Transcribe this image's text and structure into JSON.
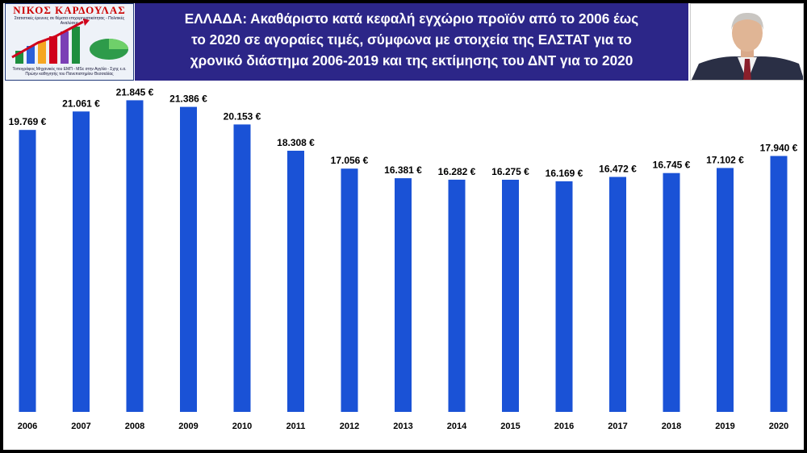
{
  "logo": {
    "name": "ΝΙΚΟΣ ΚΑΡΔΟΥΛΑΣ",
    "subtitle": "Στατιστικές έρευνες σε θέματα επιχειρηματικότητας - Πολιτικές Αναλύσεις",
    "footer_line1": "Τοπογράφος Μηχανικός του ΕΜΠ - MSc στην Αγγλία - Σχης ε.α.",
    "footer_line2": "Πρώην καθηγητής του Πανεπιστημίου Θεσσαλίας"
  },
  "header": {
    "title_line1": "ΕΛΛΑΔΑ: Ακαθάριστο κατά κεφαλή εγχώριο προϊόν από το 2006 έως",
    "title_line2": "το  2020  σε αγοραίες τιμές, σύμφωνα με στοιχεία της ΕΛΣΤΑΤ για το",
    "title_line3": "χρονικό διάστημα 2006-2019 και της εκτίμησης του ΔΝΤ για το 2020"
  },
  "colors": {
    "bar": "#1a52d6",
    "header_bg": "#2c2688",
    "frame": "#000000"
  },
  "chart_data": {
    "type": "bar",
    "categories": [
      "2006",
      "2007",
      "2008",
      "2009",
      "2010",
      "2011",
      "2012",
      "2013",
      "2014",
      "2015",
      "2016",
      "2017",
      "2018",
      "2019",
      "2020"
    ],
    "values": [
      19769,
      21061,
      21845,
      21386,
      20153,
      18308,
      17056,
      16381,
      16282,
      16275,
      16169,
      16472,
      16745,
      17102,
      17940
    ],
    "data_labels": [
      "19.769 €",
      "21.061 €",
      "21.845 €",
      "21.386 €",
      "20.153 €",
      "18.308 €",
      "17.056 €",
      "16.381 €",
      "16.282 €",
      "16.275 €",
      "16.169 €",
      "16.472 €",
      "16.745 €",
      "17.102 €",
      "17.940 €"
    ],
    "title": "",
    "xlabel": "",
    "ylabel": "",
    "ylim": [
      0,
      23000
    ],
    "grid": false,
    "legend": "none"
  }
}
